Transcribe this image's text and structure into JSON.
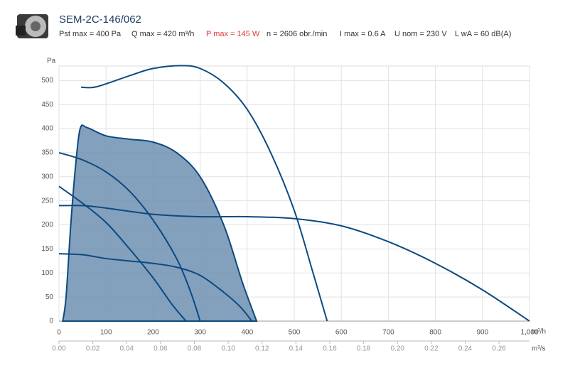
{
  "chart_data": {
    "type": "line",
    "title": "SEM-2C-146/062",
    "specs": [
      {
        "text": "Pst max = 400 Pa",
        "color": "#333333"
      },
      {
        "text": "Q max = 420 m³/h",
        "color": "#333333"
      },
      {
        "text": "P max = 145 W",
        "color": "#e53935"
      },
      {
        "text": "n = 2606 obr./min",
        "color": "#333333"
      },
      {
        "text": "I max = 0.6 A",
        "color": "#333333"
      },
      {
        "text": "U nom = 230 V",
        "color": "#333333"
      },
      {
        "text": "L wA = 60 dB(A)",
        "color": "#333333"
      }
    ],
    "y_label": "Pa",
    "x_label": "m³/h",
    "x2_label": "m³/s",
    "xlim": [
      0,
      1000
    ],
    "ylim": [
      0,
      530
    ],
    "x2lim": [
      0,
      0.278
    ],
    "xticks": [
      0,
      100,
      200,
      300,
      400,
      500,
      600,
      700,
      800,
      900,
      {
        "value": 1000,
        "label": "1,000"
      }
    ],
    "yticks": [
      0,
      50,
      100,
      150,
      200,
      250,
      300,
      350,
      400,
      450,
      500
    ],
    "x2ticks": [
      {
        "value": 0,
        "label": "0.00"
      },
      {
        "value": 0.02,
        "label": "0.02"
      },
      {
        "value": 0.04,
        "label": "0.04"
      },
      {
        "value": 0.06,
        "label": "0.06"
      },
      {
        "value": 0.08,
        "label": "0.08"
      },
      {
        "value": 0.1,
        "label": "0.10"
      },
      {
        "value": 0.12,
        "label": "0.12"
      },
      {
        "value": 0.14,
        "label": "0.14"
      },
      {
        "value": 0.16,
        "label": "0.16"
      },
      {
        "value": 0.18,
        "label": "0.18"
      },
      {
        "value": 0.2,
        "label": "0.20"
      },
      {
        "value": 0.22,
        "label": "0.22"
      },
      {
        "value": 0.24,
        "label": "0.24"
      },
      {
        "value": 0.26,
        "label": "0.26"
      }
    ],
    "grid": true,
    "series": [
      {
        "color": "#0d4a80",
        "fill": "#6d8fb2",
        "x": [
          8,
          15,
          25,
          35,
          45,
          60,
          100,
          150,
          200,
          250,
          300,
          350,
          390,
          420
        ],
        "values": [
          0,
          50,
          200,
          320,
          400,
          402,
          385,
          378,
          372,
          350,
          300,
          200,
          80,
          0
        ]
      },
      {
        "color": "#0d4a80",
        "x": [
          47,
          80,
          150,
          200,
          260,
          300,
          350,
          400,
          450,
          500,
          540,
          570
        ],
        "values": [
          486,
          487,
          510,
          525,
          531,
          525,
          495,
          440,
          350,
          230,
          100,
          0
        ]
      },
      {
        "color": "#0d4a80",
        "x": [
          0,
          50,
          100,
          150,
          200,
          250,
          280,
          300
        ],
        "values": [
          350,
          335,
          310,
          270,
          210,
          130,
          60,
          0
        ]
      },
      {
        "color": "#0d4a80",
        "x": [
          0,
          50,
          100,
          150,
          200,
          240,
          270
        ],
        "values": [
          280,
          245,
          205,
          150,
          90,
          35,
          0
        ]
      },
      {
        "color": "#0d4a80",
        "x": [
          0,
          50,
          100,
          150,
          200,
          250,
          300,
          350,
          385,
          410
        ],
        "values": [
          140,
          138,
          130,
          125,
          120,
          112,
          95,
          60,
          30,
          0
        ]
      },
      {
        "color": "#0d4a80",
        "x": [
          0,
          50,
          100,
          200,
          300,
          400,
          500,
          600,
          700,
          800,
          900,
          1000
        ],
        "values": [
          240,
          240,
          235,
          222,
          217,
          217,
          213,
          198,
          165,
          120,
          65,
          0
        ]
      }
    ]
  }
}
